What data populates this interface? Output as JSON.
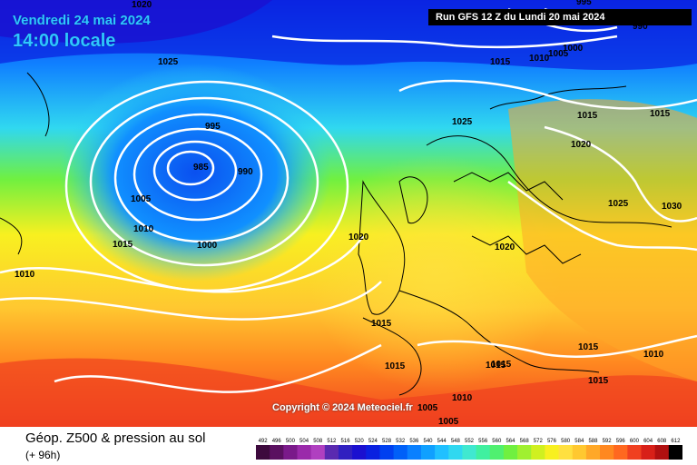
{
  "header": {
    "date": "Vendredi 24 mai 2024",
    "time": "14:00 locale",
    "run": "Run GFS 12 Z du Lundi 20 mai 2024"
  },
  "copyright": "Copyright © 2024 Meteociel.fr",
  "footer": {
    "title": "Géop. Z500 & pression au sol",
    "subtitle": "(+ 96h)"
  },
  "scale": {
    "labels": [
      "492",
      "496",
      "500",
      "504",
      "508",
      "512",
      "516",
      "520",
      "524",
      "528",
      "532",
      "536",
      "540",
      "544",
      "548",
      "552",
      "556",
      "560",
      "564",
      "568",
      "572",
      "576",
      "580",
      "584",
      "588",
      "592",
      "596",
      "600",
      "604",
      "608",
      "612"
    ],
    "colors": [
      "#3d0a3d",
      "#5a1060",
      "#7a1a8a",
      "#9a2aaa",
      "#b040c0",
      "#5a2ab0",
      "#3020c0",
      "#1a10d0",
      "#0a20e0",
      "#0040f0",
      "#0060f8",
      "#0a80ff",
      "#10a0ff",
      "#20c0ff",
      "#30d8f0",
      "#40e8d0",
      "#40f0a0",
      "#50f070",
      "#70f040",
      "#a0f030",
      "#d0f020",
      "#f8f020",
      "#ffe040",
      "#ffc830",
      "#ffa828",
      "#ff8820",
      "#ff6820",
      "#f04020",
      "#d82018",
      "#b01010",
      "#000000"
    ]
  },
  "isobars": {
    "labels": [
      "1025",
      "1020",
      "995",
      "990",
      "985",
      "1005",
      "1010",
      "1015",
      "1000",
      "1010",
      "1020",
      "1025",
      "1015",
      "1020",
      "1015",
      "1025",
      "1030",
      "1020",
      "1015",
      "1015",
      "1015",
      "1010",
      "1015",
      "1010",
      "1005",
      "1005",
      "1015",
      "1000",
      "1005",
      "1015",
      "1010",
      "995",
      "990",
      "1015"
    ]
  }
}
